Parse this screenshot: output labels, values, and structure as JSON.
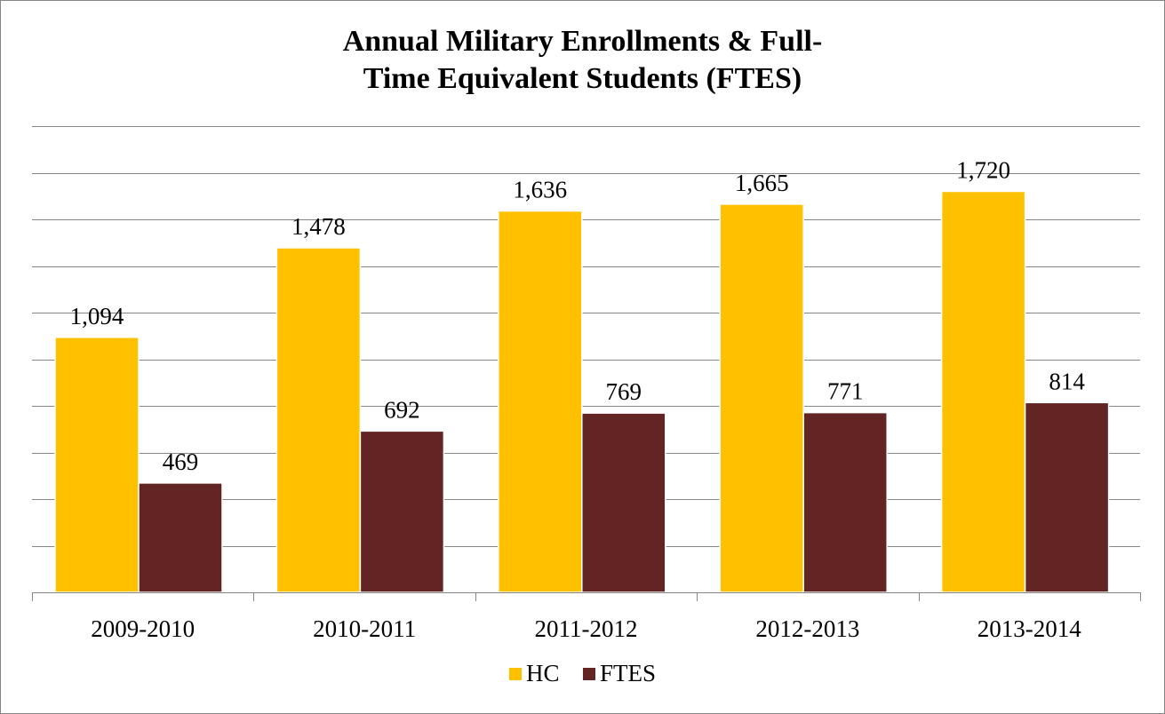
{
  "chart_data": {
    "type": "bar",
    "title_lines": [
      "Annual Military Enrollments & Full-",
      "Time Equivalent Students (FTES)"
    ],
    "categories": [
      "2009-2010",
      "2010-2011",
      "2011-2012",
      "2012-2013",
      "2013-2014"
    ],
    "series": [
      {
        "name": "HC",
        "color": "#FFC000",
        "values": [
          1094,
          1478,
          1636,
          1665,
          1720
        ],
        "labels": [
          "1,094",
          "1,478",
          "1,636",
          "1,665",
          "1,720"
        ]
      },
      {
        "name": "FTES",
        "color": "#632523",
        "values": [
          469,
          692,
          769,
          771,
          814
        ],
        "labels": [
          "469",
          "692",
          "769",
          "771",
          "814"
        ]
      }
    ],
    "ylim": [
      0,
      2000
    ],
    "grid_step": 200,
    "grid": true,
    "y_axis_labels_shown": false,
    "legend_position": "bottom"
  }
}
